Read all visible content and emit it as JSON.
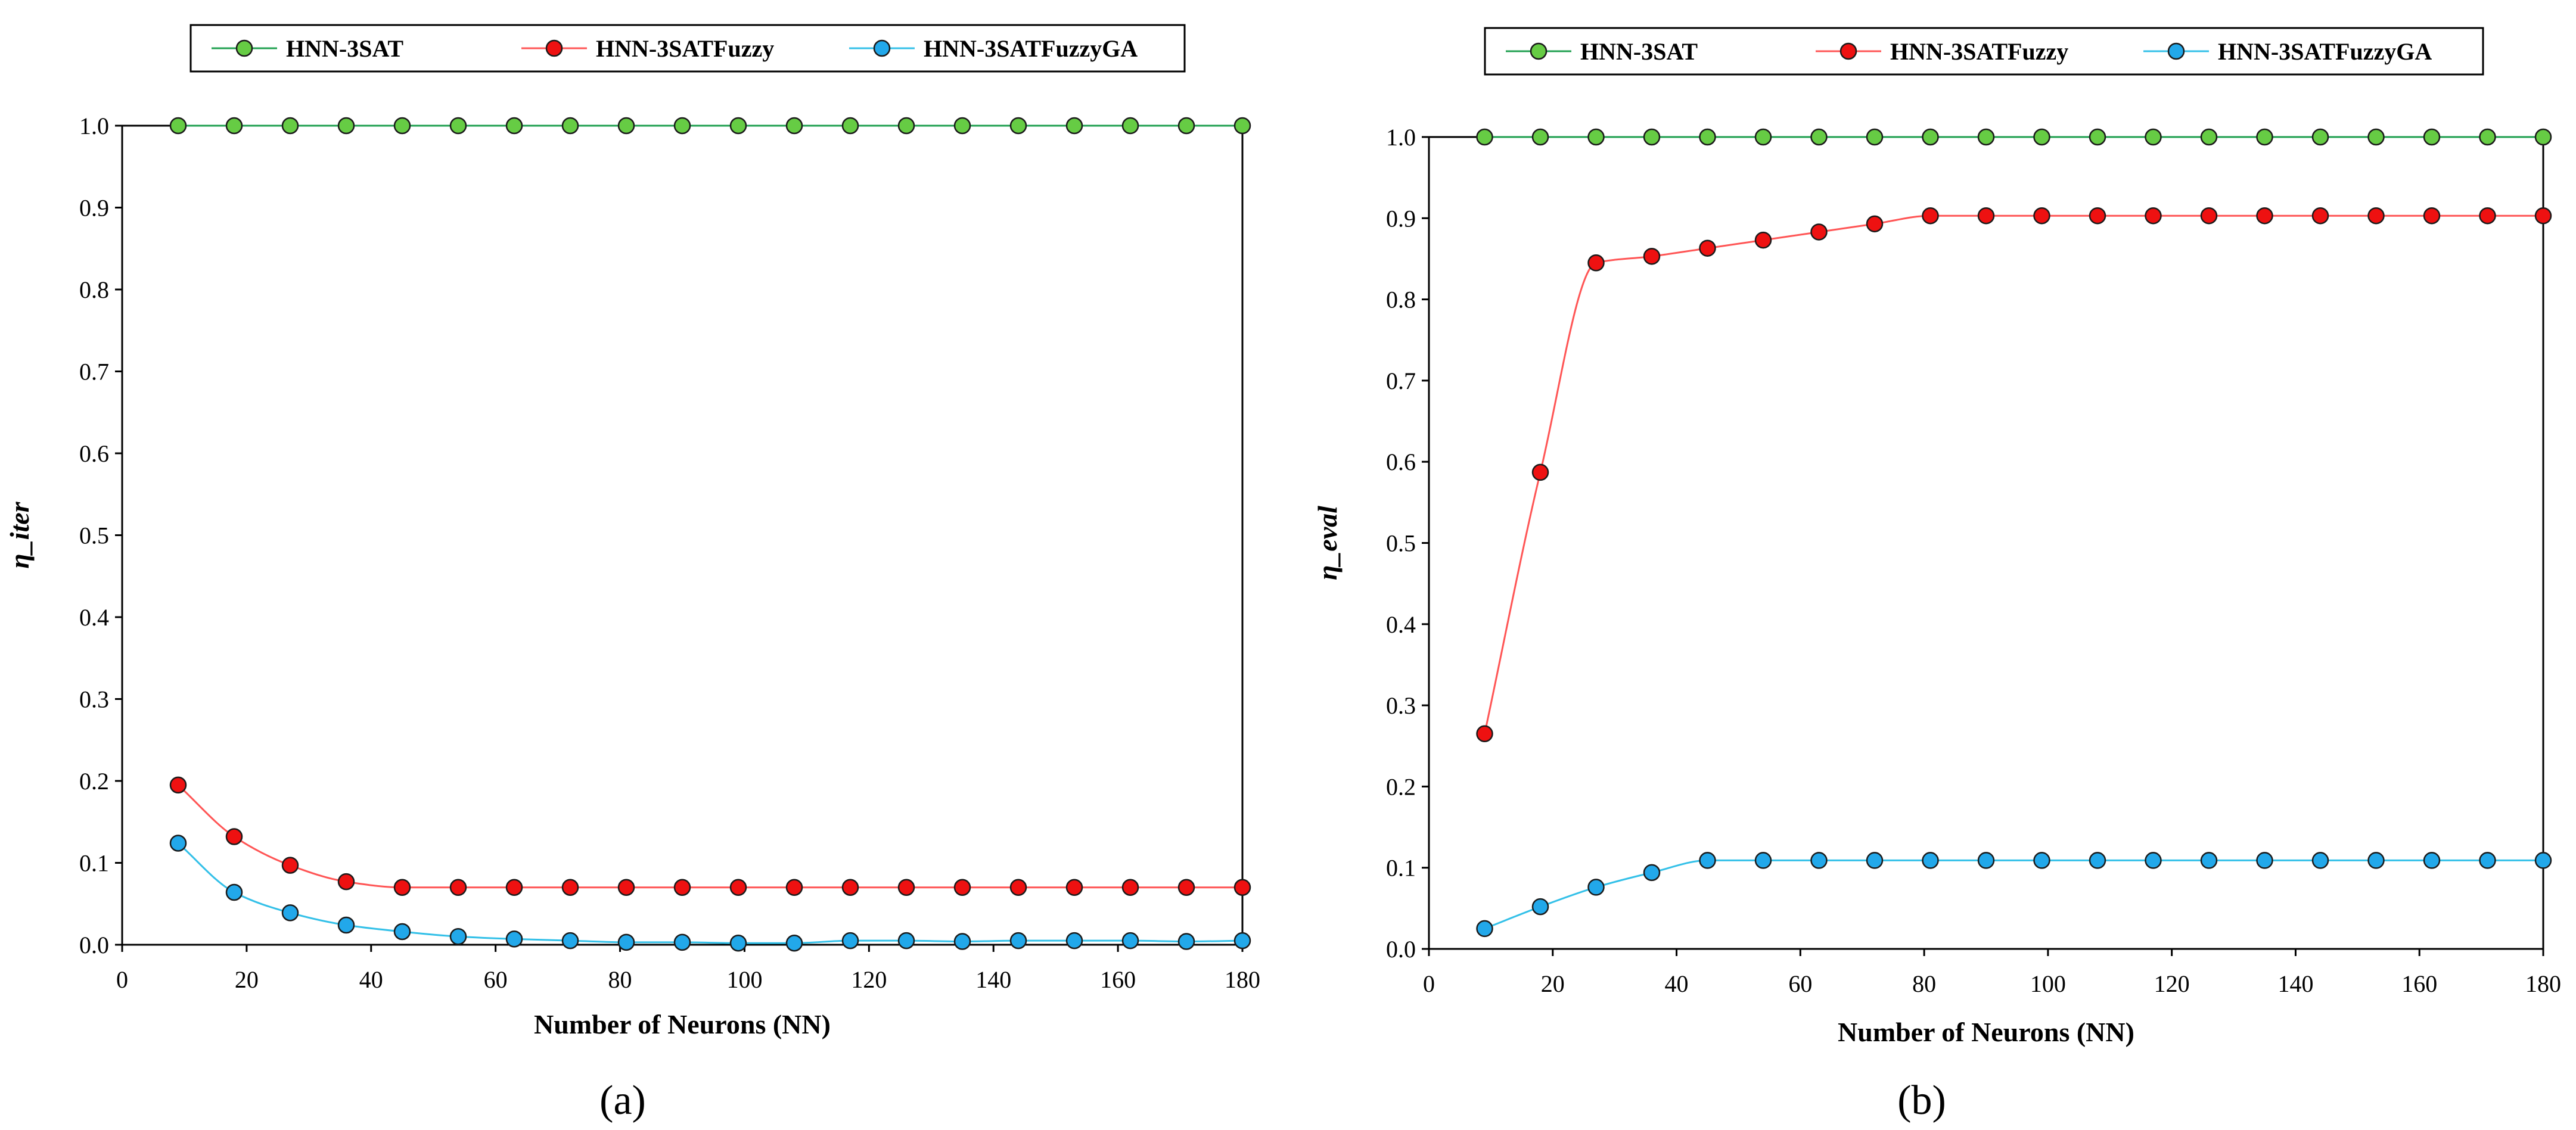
{
  "chart_data": [
    {
      "type": "line",
      "panel_label": "(a)",
      "xlabel": "Number of Neurons (NN)",
      "ylabel": "η_iter",
      "xlim": [
        0,
        180
      ],
      "ylim": [
        0,
        1
      ],
      "xticks": [
        "0",
        "20",
        "40",
        "60",
        "80",
        "100",
        "120",
        "140",
        "160",
        "180"
      ],
      "yticks": [
        "0.0",
        "0.1",
        "0.2",
        "0.3",
        "0.4",
        "0.5",
        "0.6",
        "0.7",
        "0.8",
        "0.9",
        "1.0"
      ],
      "x": [
        9,
        18,
        27,
        36,
        45,
        54,
        63,
        72,
        81,
        90,
        99,
        108,
        117,
        126,
        135,
        144,
        153,
        162,
        171,
        180
      ],
      "series": [
        {
          "name": "HNN-3SAT",
          "color": "#20a050",
          "fill": "#66cc44",
          "values": [
            1,
            1,
            1,
            1,
            1,
            1,
            1,
            1,
            1,
            1,
            1,
            1,
            1,
            1,
            1,
            1,
            1,
            1,
            1,
            1
          ]
        },
        {
          "name": "HNN-3SATFuzzy",
          "color": "#ff5555",
          "fill": "#ee1111",
          "values": [
            0.195,
            0.132,
            0.097,
            0.077,
            0.07,
            0.07,
            0.07,
            0.07,
            0.07,
            0.07,
            0.07,
            0.07,
            0.07,
            0.07,
            0.07,
            0.07,
            0.07,
            0.07,
            0.07,
            0.07
          ]
        },
        {
          "name": "HNN-3SATFuzzyGA",
          "color": "#33c0e8",
          "fill": "#22a8ea",
          "values": [
            0.124,
            0.064,
            0.039,
            0.024,
            0.016,
            0.01,
            0.007,
            0.005,
            0.003,
            0.003,
            0.002,
            0.002,
            0.005,
            0.005,
            0.004,
            0.005,
            0.005,
            0.005,
            0.004,
            0.005
          ]
        }
      ],
      "legend": [
        "HNN-3SAT",
        "HNN-3SATFuzzy",
        "HNN-3SATFuzzyGA"
      ]
    },
    {
      "type": "line",
      "panel_label": "(b)",
      "xlabel": "Number of Neurons (NN)",
      "ylabel": "η_eval",
      "xlim": [
        0,
        180
      ],
      "ylim": [
        0,
        1
      ],
      "xticks": [
        "0",
        "20",
        "40",
        "60",
        "80",
        "100",
        "120",
        "140",
        "160",
        "180"
      ],
      "yticks": [
        "0.0",
        "0.1",
        "0.2",
        "0.3",
        "0.4",
        "0.5",
        "0.6",
        "0.7",
        "0.8",
        "0.9",
        "1.0"
      ],
      "x": [
        9,
        18,
        27,
        36,
        45,
        54,
        63,
        72,
        81,
        90,
        99,
        108,
        117,
        126,
        135,
        144,
        153,
        162,
        171,
        180
      ],
      "series": [
        {
          "name": "HNN-3SAT",
          "color": "#20a050",
          "fill": "#66cc44",
          "values": [
            1,
            1,
            1,
            1,
            1,
            1,
            1,
            1,
            1,
            1,
            1,
            1,
            1,
            1,
            1,
            1,
            1,
            1,
            1,
            1
          ]
        },
        {
          "name": "HNN-3SATFuzzy",
          "color": "#ff5555",
          "fill": "#ee1111",
          "values": [
            0.265,
            0.587,
            0.845,
            0.853,
            0.863,
            0.873,
            0.883,
            0.893,
            0.903,
            0.903,
            0.903,
            0.903,
            0.903,
            0.903,
            0.903,
            0.903,
            0.903,
            0.903,
            0.903,
            0.903
          ]
        },
        {
          "name": "HNN-3SATFuzzyGA",
          "color": "#33c0e8",
          "fill": "#22a8ea",
          "values": [
            0.025,
            0.052,
            0.076,
            0.094,
            0.109,
            0.109,
            0.109,
            0.109,
            0.109,
            0.109,
            0.109,
            0.109,
            0.109,
            0.109,
            0.109,
            0.109,
            0.109,
            0.109,
            0.109,
            0.109
          ]
        }
      ],
      "legend": [
        "HNN-3SAT",
        "HNN-3SATFuzzy",
        "HNN-3SATFuzzyGA"
      ]
    }
  ]
}
